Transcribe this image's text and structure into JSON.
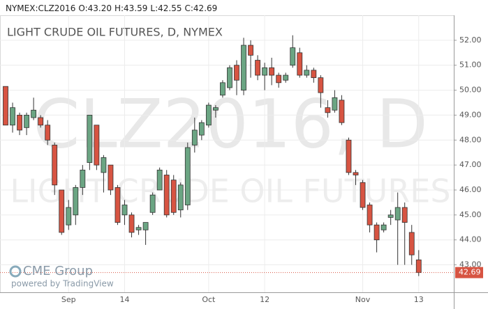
{
  "chart_data": {
    "type": "candlestick",
    "header": {
      "symbol": "NYMEX:CLZ2016",
      "ohlc": [
        "O:43.20",
        "H:43.59",
        "L:42.55",
        "C:42.69"
      ]
    },
    "title": "LIGHT CRUDE OIL FUTURES, D, NYMEX",
    "watermark": [
      "CLZ2016, D",
      "LIGHT CRUDE OIL FUTURES"
    ],
    "branding": [
      "CME Group",
      "powered by TradingView"
    ],
    "categories": [
      null,
      null,
      null,
      null,
      null,
      null,
      null,
      null,
      null,
      "Sep",
      null,
      null,
      null,
      null,
      null,
      null,
      null,
      "14",
      null,
      null,
      null,
      null,
      null,
      null,
      null,
      null,
      null,
      null,
      null,
      "Oct",
      null,
      null,
      null,
      null,
      null,
      null,
      null,
      "12",
      null,
      null,
      null,
      null,
      null,
      null,
      null,
      null,
      null,
      null,
      null,
      null,
      null,
      "Nov",
      null,
      null,
      null,
      null,
      null,
      null,
      null,
      "13"
    ],
    "open": [
      50.15,
      48.6,
      49.0,
      48.5,
      48.9,
      48.9,
      48.6,
      47.8,
      46.0,
      44.6,
      45.0,
      46.1,
      47.1,
      48.6,
      46.7,
      47.0,
      46.1,
      45.0,
      45.0,
      44.4,
      44.4,
      45.1,
      46.0,
      46.6,
      46.4,
      45.2,
      45.4,
      47.8,
      48.2,
      48.6,
      49.2,
      49.8,
      50.1,
      51.0,
      50.0,
      51.8,
      51.2,
      50.6,
      50.9,
      50.6,
      50.4,
      51.0,
      51.5,
      50.6,
      50.8,
      50.5,
      49.3,
      49.2,
      49.6,
      48.0,
      46.7,
      46.3,
      45.4,
      44.6,
      44.4,
      44.9,
      44.8,
      45.3,
      44.3,
      43.2
    ],
    "high": [
      50.15,
      49.5,
      49.1,
      49.1,
      49.7,
      49.0,
      48.8,
      47.9,
      46.0,
      45.6,
      46.2,
      47.0,
      49.0,
      48.6,
      47.4,
      47.0,
      46.2,
      45.6,
      45.1,
      44.6,
      44.7,
      45.9,
      46.9,
      46.8,
      46.6,
      46.3,
      47.9,
      48.9,
      48.8,
      49.5,
      49.4,
      50.4,
      51.0,
      51.2,
      52.1,
      52.0,
      51.4,
      51.1,
      51.3,
      50.7,
      50.7,
      52.2,
      51.7,
      51.0,
      50.9,
      50.6,
      49.6,
      50.0,
      49.8,
      48.1,
      46.8,
      46.4,
      45.5,
      44.7,
      44.7,
      45.2,
      45.9,
      45.5,
      44.6,
      43.59
    ],
    "low": [
      48.6,
      48.3,
      48.2,
      48.2,
      48.8,
      48.5,
      47.8,
      45.8,
      44.2,
      44.4,
      44.6,
      45.8,
      46.8,
      46.8,
      45.9,
      45.8,
      44.6,
      44.6,
      44.1,
      44.2,
      43.8,
      45.0,
      46.0,
      44.9,
      45.0,
      44.9,
      45.2,
      47.5,
      48.0,
      48.5,
      48.9,
      49.7,
      50.0,
      49.8,
      49.8,
      50.5,
      50.4,
      50.0,
      50.2,
      50.1,
      50.3,
      50.9,
      50.5,
      50.5,
      50.3,
      49.3,
      48.9,
      49.1,
      48.6,
      46.6,
      46.2,
      45.2,
      44.3,
      43.5,
      44.3,
      44.6,
      43.0,
      43.0,
      43.0,
      42.55
    ],
    "close": [
      48.6,
      49.3,
      48.4,
      49.0,
      49.2,
      48.6,
      48.0,
      46.2,
      44.3,
      45.3,
      46.1,
      46.8,
      49.0,
      47.0,
      47.3,
      46.0,
      44.7,
      45.4,
      44.3,
      44.5,
      44.7,
      45.8,
      46.8,
      45.0,
      45.1,
      46.2,
      47.7,
      48.4,
      48.7,
      49.4,
      49.3,
      50.3,
      50.9,
      50.4,
      51.8,
      51.4,
      50.6,
      50.9,
      50.6,
      50.3,
      50.6,
      51.7,
      50.6,
      50.8,
      50.5,
      49.9,
      49.1,
      49.7,
      48.7,
      46.7,
      46.6,
      45.3,
      44.6,
      44.0,
      44.6,
      45.0,
      45.3,
      44.7,
      43.4,
      42.69
    ],
    "up_color": "#6ba583",
    "down_color": "#d75442",
    "last_price": {
      "value": 42.69,
      "label": "42.69"
    },
    "last_price_color": "#d75442",
    "ylim": [
      41.9,
      53.0
    ],
    "yticks": [
      {
        "value": 43,
        "label": "43.00"
      },
      {
        "value": 44,
        "label": "44.00"
      },
      {
        "value": 45,
        "label": "45.00"
      },
      {
        "value": 46,
        "label": "46.00"
      },
      {
        "value": 47,
        "label": "47.00"
      },
      {
        "value": 48,
        "label": "48.00"
      },
      {
        "value": 49,
        "label": "49.00"
      },
      {
        "value": 50,
        "label": "50.00"
      },
      {
        "value": 51,
        "label": "51.00"
      },
      {
        "value": 52,
        "label": "52.00"
      }
    ],
    "grid": true
  }
}
